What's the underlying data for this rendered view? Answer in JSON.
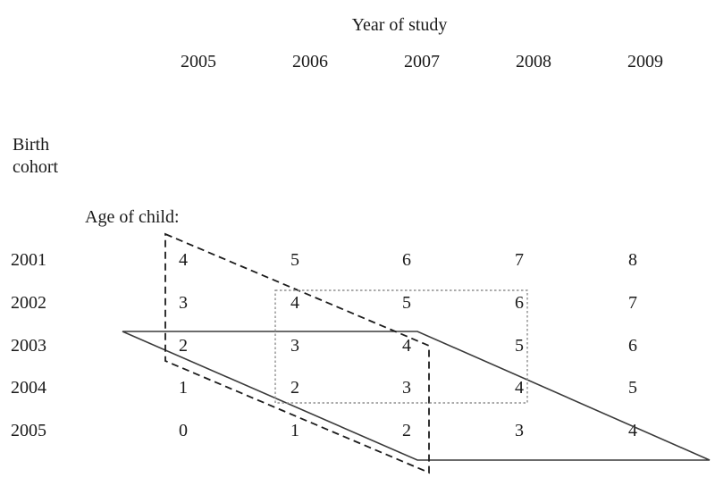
{
  "figure": {
    "title": "Year of study",
    "row_header": {
      "line1": "Birth",
      "line2": "cohort"
    },
    "age_label": "Age of child:",
    "years": [
      "2005",
      "2006",
      "2007",
      "2008",
      "2009"
    ],
    "cohorts": [
      {
        "label": "2001",
        "ages": [
          "4",
          "5",
          "6",
          "7",
          "8"
        ]
      },
      {
        "label": "2002",
        "ages": [
          "3",
          "4",
          "5",
          "6",
          "7"
        ]
      },
      {
        "label": "2003",
        "ages": [
          "2",
          "3",
          "4",
          "5",
          "6"
        ]
      },
      {
        "label": "2004",
        "ages": [
          "1",
          "2",
          "3",
          "4",
          "5"
        ]
      },
      {
        "label": "2005",
        "ages": [
          "0",
          "1",
          "2",
          "3",
          "4"
        ]
      }
    ],
    "overlay_shapes": [
      "dashed-parallelogram",
      "solid-parallelogram",
      "dotted-rectangle"
    ],
    "colors": {
      "text": "#1a1a1a",
      "solid_line": "#3a3a3a",
      "dashed_line": "#1c1c1c",
      "dotted_line": "#8f8f8f",
      "background": "#ffffff"
    }
  }
}
